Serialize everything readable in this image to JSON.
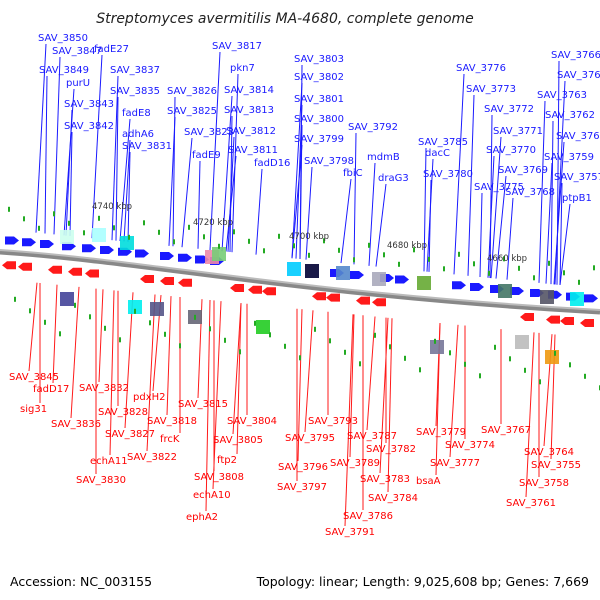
{
  "title": "Streptomyces avermitilis MA-4680, complete genome",
  "footer": {
    "accession": "Accession: NC_003155",
    "stats": "Topology: linear; Length: 9,025,608 bp; Genes: 7,669"
  },
  "scale_labels": [
    "4740 kbp",
    "4720 kbp",
    "4700 kbp",
    "4680 kbp",
    "4660 kbp"
  ],
  "top_labels": [
    "SAV_3850",
    "SAV_3847",
    "SAV_3849",
    "purU",
    "SAV_3843",
    "SAV_3842",
    "fadE27",
    "SAV_3837",
    "SAV_3835",
    "fadE8",
    "adhA6",
    "SAV_3831",
    "SAV_3817",
    "pkn7",
    "SAV_3826",
    "SAV_3814",
    "SAV_3825",
    "SAV_3813",
    "SAV_3823",
    "SAV_3812",
    "fadE9",
    "SAV_3811",
    "fadD16",
    "SAV_3803",
    "SAV_3802",
    "SAV_3801",
    "SAV_3800",
    "SAV_3799",
    "SAV_3798",
    "SAV_3792",
    "fbiC",
    "mdmB",
    "SAV_3785",
    "draG3",
    "dacC",
    "SAV_3780",
    "SAV_3776",
    "SAV_3773",
    "SAV_3772",
    "SAV_3771",
    "SAV_3770",
    "SAV_3775",
    "SAV_3769",
    "SAV_3768",
    "SAV_3766",
    "SAV_3765",
    "SAV_3763",
    "SAV_3762",
    "SAV_3760",
    "SAV_3759",
    "SAV_3757",
    "ptpB1"
  ],
  "bottom_labels": [
    "SAV_3845",
    "fadD17",
    "sig31",
    "SAV_3836",
    "SAV_3832",
    "SAV_3828",
    "SAV_3827",
    "echA11",
    "SAV_3830",
    "pdxH2",
    "SAV_3818",
    "frcK",
    "SAV_3822",
    "SAV_3815",
    "SAV_3804",
    "SAV_3805",
    "ftp2",
    "SAV_3808",
    "echA10",
    "ephA2",
    "SAV_3793",
    "SAV_3795",
    "SAV_3796",
    "SAV_3797",
    "SAV_3787",
    "SAV_3789",
    "SAV_3782",
    "SAV_3783",
    "SAV_3784",
    "SAV_3786",
    "SAV_3791",
    "SAV_3779",
    "SAV_3774",
    "SAV_3777",
    "bsaA",
    "SAV_3767",
    "SAV_3764",
    "SAV_3755",
    "SAV_3758",
    "SAV_3761"
  ]
}
